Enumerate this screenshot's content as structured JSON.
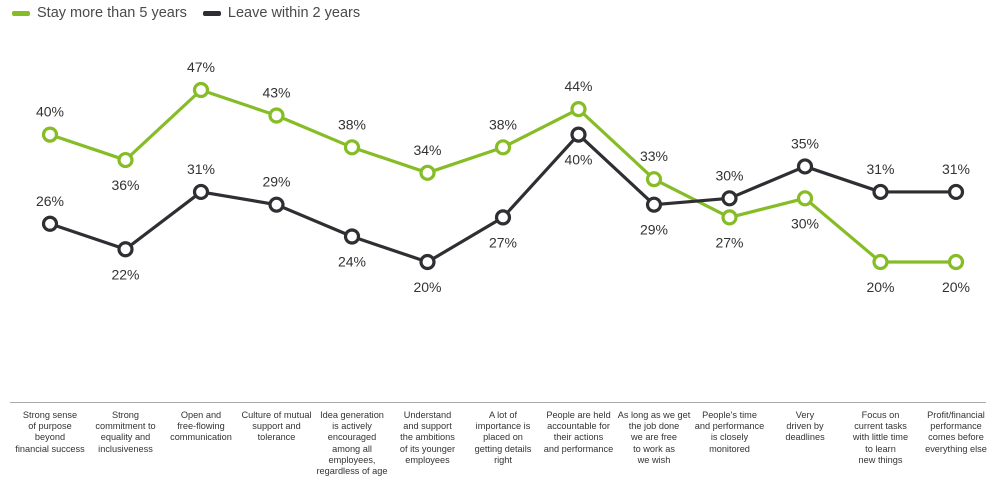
{
  "legend": [
    {
      "label": "Stay more than 5 years",
      "color": "#86BC25"
    },
    {
      "label": "Leave within 2 years",
      "color": "#2F2F33"
    }
  ],
  "chart_data": {
    "type": "line",
    "categories": [
      "Strong sense of purpose beyond financial success",
      "Strong commitment to equality and inclusiveness",
      "Open and free-flowing communication",
      "Culture of mutual support and tolerance",
      "Idea generation is actively encouraged among all employees, regardless of age",
      "Understand and support the ambitions of its younger employees",
      "A lot of importance is placed on getting details right",
      "People are held accountable for their actions and performance",
      "As long as we get the job done we are free to work as we wish",
      "People's time and performance is closely monitored",
      "Very driven by deadlines",
      "Focus on current tasks with little time to learn new things",
      "Profit/financial performance comes before everything else"
    ],
    "category_lines": [
      [
        "Strong sense",
        "of purpose",
        "beyond",
        "financial success"
      ],
      [
        "Strong",
        "commitment to",
        "equality and",
        "inclusiveness"
      ],
      [
        "Open and",
        "free-flowing",
        "communication"
      ],
      [
        "Culture of mutual",
        "support and",
        "tolerance"
      ],
      [
        "Idea generation",
        "is actively",
        "encouraged",
        "among all",
        "employees,",
        "regardless of age"
      ],
      [
        "Understand",
        "and support",
        "the ambitions",
        "of its younger",
        "employees"
      ],
      [
        "A lot of",
        "importance is",
        "placed on",
        "getting details",
        "right"
      ],
      [
        "People are held",
        "accountable for",
        "their actions",
        "and performance"
      ],
      [
        "As long as we get",
        "the job done",
        "we are free",
        "to work as",
        "we wish"
      ],
      [
        "People's time",
        "and performance",
        "is closely",
        "monitored"
      ],
      [
        "Very",
        "driven by",
        "deadlines"
      ],
      [
        "Focus on",
        "current tasks",
        "with little time",
        "to learn",
        "new things"
      ],
      [
        "Profit/financial",
        "performance",
        "comes before",
        "everything else"
      ]
    ],
    "series": [
      {
        "name": "Stay more than 5 years",
        "color": "#86BC25",
        "values": [
          40,
          36,
          47,
          43,
          38,
          34,
          38,
          44,
          33,
          27,
          30,
          20,
          20
        ],
        "labels": [
          "40%",
          "36%",
          "47%",
          "43%",
          "38%",
          "34%",
          "38%",
          "44%",
          "33%",
          "27%",
          "30%",
          "20%",
          "20%"
        ],
        "label_pos": [
          "above",
          "below",
          "above",
          "above",
          "above",
          "above",
          "above",
          "above",
          "above",
          "below",
          "below",
          "below",
          "below"
        ]
      },
      {
        "name": "Leave within 2 years",
        "color": "#2F2F33",
        "values": [
          26,
          22,
          31,
          29,
          24,
          20,
          27,
          40,
          29,
          30,
          35,
          31,
          31
        ],
        "labels": [
          "26%",
          "22%",
          "31%",
          "29%",
          "24%",
          "20%",
          "27%",
          "40%",
          "29%",
          "30%",
          "35%",
          "31%",
          "31%"
        ],
        "label_pos": [
          "above",
          "below",
          "above",
          "above",
          "below",
          "below",
          "below",
          "below",
          "below",
          "above",
          "above",
          "above",
          "above"
        ]
      }
    ],
    "ylim": [
      17,
      50
    ],
    "grid": false,
    "legend_position": "top-left"
  }
}
